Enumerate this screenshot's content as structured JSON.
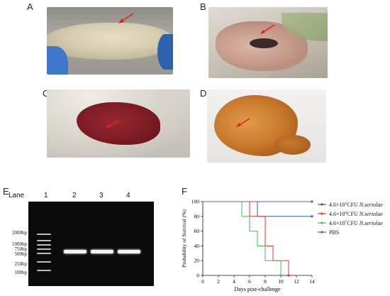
{
  "panels": {
    "a": {
      "letter": "A"
    },
    "b": {
      "letter": "B"
    },
    "c": {
      "letter": "C"
    },
    "d": {
      "letter": "D"
    },
    "e": {
      "letter": "E"
    },
    "f": {
      "letter": "F"
    }
  },
  "gel": {
    "lane_title": "Lane",
    "lanes": [
      "1",
      "2",
      "3",
      "4"
    ],
    "ladder": [
      "2000bp",
      "1000bp",
      "750bp",
      "500bp",
      "250bp",
      "100bp"
    ]
  },
  "colors": {
    "arrow": "#e02020",
    "series_low": "#2a5db0",
    "series_mid": "#e3342f",
    "series_high": "#3fbf3f",
    "series_pbs": "#8e44ad"
  },
  "chart_data": {
    "type": "line",
    "step": true,
    "title": "",
    "xlabel": "Days post-challenge",
    "ylabel": "Probability of Survival (%)",
    "xlim": [
      0,
      14
    ],
    "ylim": [
      0,
      100
    ],
    "xticks": [
      0,
      2,
      4,
      6,
      8,
      10,
      12,
      14
    ],
    "yticks": [
      0,
      20,
      40,
      60,
      80,
      100
    ],
    "legend_position": "right",
    "series": [
      {
        "name": "4.6×10⁵CFU N.seriolae",
        "name_parts": [
          "4.6×10",
          "5",
          "CFU ",
          "N.seriolae"
        ],
        "color": "#2a5db0",
        "x": [
          0,
          7,
          7,
          14
        ],
        "y": [
          100,
          100,
          80,
          80
        ]
      },
      {
        "name": "4.6×10⁶CFU N.seriolae",
        "name_parts": [
          "4.6×10",
          "6",
          "CFU ",
          "N.seriolae"
        ],
        "color": "#e3342f",
        "x": [
          0,
          6,
          6,
          8,
          8,
          9,
          9,
          11,
          11
        ],
        "y": [
          100,
          100,
          80,
          80,
          40,
          40,
          20,
          20,
          0
        ]
      },
      {
        "name": "4.6×10⁷CFU N.seriolae",
        "name_parts": [
          "4.6×10",
          "7",
          "CFU ",
          "N.seriolae"
        ],
        "color": "#3fbf3f",
        "x": [
          0,
          5,
          5,
          6,
          6,
          7,
          7,
          8,
          8,
          10,
          10
        ],
        "y": [
          100,
          100,
          80,
          80,
          60,
          60,
          40,
          40,
          20,
          20,
          0
        ]
      },
      {
        "name": "PBS",
        "name_parts": [
          "PBS",
          "",
          "",
          ""
        ],
        "color": "#8e44ad",
        "x": [
          0,
          14
        ],
        "y": [
          100,
          100
        ]
      }
    ]
  }
}
